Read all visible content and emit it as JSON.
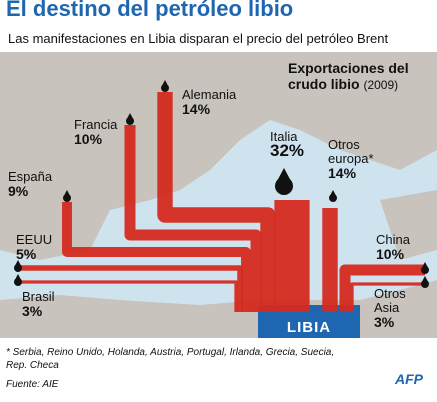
{
  "chart_data": {
    "type": "flow",
    "title": "El destino del petróleo libio",
    "subtitle": "Las manifestaciones en Libia disparan el precio del petróleo Brent",
    "legend_title": "Exportaciones del crudo libio",
    "legend_year": "(2009)",
    "origin": "LIBIA",
    "categories": [
      "Alemania",
      "Francia",
      "España",
      "EEUU",
      "Brasil",
      "Italia",
      "Otros europa*",
      "China",
      "Otros Asia"
    ],
    "values": [
      14,
      10,
      9,
      5,
      3,
      32,
      14,
      10,
      3
    ],
    "value_labels": [
      "14%",
      "10%",
      "9%",
      "5%",
      "3%",
      "32%",
      "14%",
      "10%",
      "3%"
    ],
    "color": "#d42a1f",
    "note": "* Serbia, Reino Unido, Holanda, Austria, Portugal, Irlanda, Grecia, Suecia, Rep. Checa",
    "source": "Fuente: AIE",
    "credit": "AFP"
  }
}
